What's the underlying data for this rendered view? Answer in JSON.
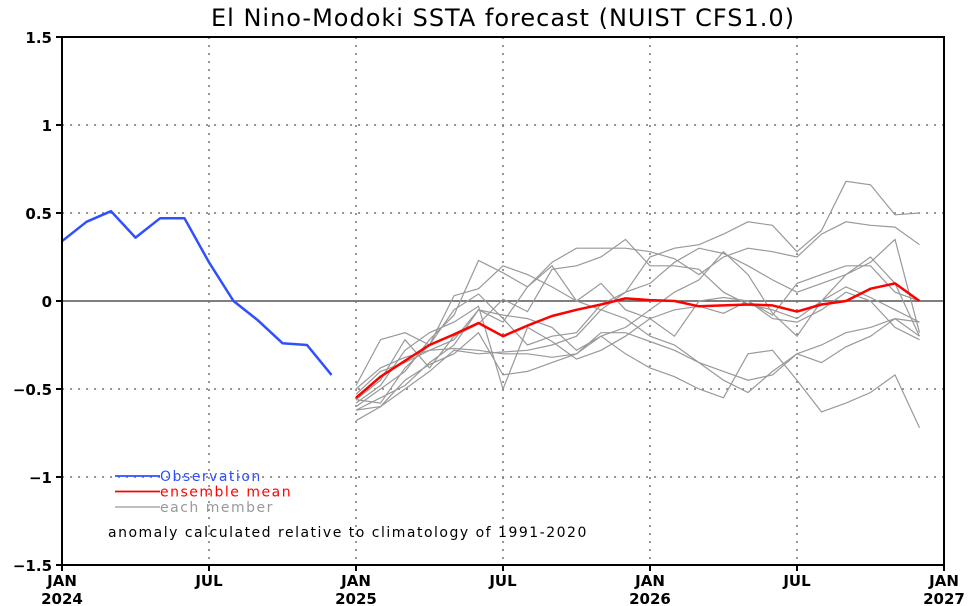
{
  "chart_data": {
    "type": "line",
    "title": "El Nino-Modoki SSTA forecast (NUIST CFS1.0)",
    "xlabel": "",
    "ylabel": "",
    "ylim": [
      -1.5,
      1.5
    ],
    "yticks": [
      1.5,
      1,
      0.5,
      0,
      -0.5,
      -1,
      -1.5
    ],
    "ytick_labels": [
      "1.5",
      "1",
      "0.5",
      "0",
      "-0.5",
      "-1",
      "-1.5"
    ],
    "xrange_months": [
      0,
      36
    ],
    "xticks": [
      {
        "month": 0,
        "label": "JAN",
        "year": "2024"
      },
      {
        "month": 6,
        "label": "JUL",
        "year": ""
      },
      {
        "month": 12,
        "label": "JAN",
        "year": "2025"
      },
      {
        "month": 18,
        "label": "JUL",
        "year": ""
      },
      {
        "month": 24,
        "label": "JAN",
        "year": "2026"
      },
      {
        "month": 30,
        "label": "JUL",
        "year": ""
      },
      {
        "month": 36,
        "label": "JAN",
        "year": "2027"
      }
    ],
    "grid": true,
    "legend_placement": "bottom-left",
    "note": "anomaly calculated relative to climatology of 1991-2020",
    "series": [
      {
        "name": "Observation",
        "color": "#3050ff",
        "start_month": 0,
        "values": [
          0.34,
          0.45,
          0.51,
          0.36,
          0.47,
          0.47,
          0.22,
          0.0,
          -0.11,
          -0.24,
          -0.25,
          -0.42
        ]
      },
      {
        "name": "ensemble mean",
        "color": "#ff0000",
        "start_month": 12,
        "values": [
          -0.55,
          -0.43,
          -0.34,
          -0.25,
          -0.19,
          -0.125,
          -0.2,
          -0.14,
          -0.085,
          -0.05,
          -0.02,
          0.015,
          0.005,
          0.0,
          -0.03,
          -0.025,
          -0.02,
          -0.025,
          -0.06,
          -0.02,
          0.0,
          0.07,
          0.1,
          0.0
        ]
      },
      {
        "name": "each member",
        "color": "#999999",
        "start_month": 12,
        "members": [
          [
            -0.48,
            -0.22,
            -0.18,
            -0.25,
            -0.05,
            0.04,
            -0.1,
            -0.25,
            -0.2,
            -0.18,
            -0.02,
            0.05,
            0.25,
            0.3,
            0.32,
            0.38,
            0.45,
            0.43,
            0.28,
            0.4,
            0.68,
            0.66,
            0.49,
            0.5
          ],
          [
            -0.6,
            -0.5,
            -0.4,
            -0.22,
            -0.08,
            0.23,
            0.16,
            0.08,
            0.22,
            0.3,
            0.3,
            0.3,
            0.28,
            0.24,
            0.15,
            0.25,
            0.3,
            0.28,
            0.25,
            0.38,
            0.45,
            0.43,
            0.42,
            0.32
          ],
          [
            -0.56,
            -0.45,
            -0.22,
            -0.38,
            -0.2,
            -0.13,
            0.01,
            -0.06,
            0.18,
            0.2,
            0.25,
            0.35,
            0.2,
            0.2,
            0.18,
            0.05,
            -0.02,
            -0.05,
            -0.1,
            0.0,
            0.15,
            0.25,
            0.1,
            -0.2
          ],
          [
            -0.62,
            -0.6,
            -0.5,
            -0.4,
            -0.28,
            -0.3,
            -0.29,
            -0.28,
            -0.25,
            -0.2,
            -0.05,
            0.05,
            0.1,
            0.22,
            0.3,
            0.27,
            0.2,
            0.12,
            0.05,
            0.1,
            0.15,
            0.22,
            0.35,
            -0.18
          ],
          [
            -0.68,
            -0.6,
            -0.45,
            -0.36,
            -0.3,
            -0.18,
            -0.42,
            -0.4,
            -0.35,
            -0.3,
            -0.18,
            -0.18,
            -0.23,
            -0.28,
            -0.35,
            -0.45,
            -0.52,
            -0.4,
            -0.3,
            -0.25,
            -0.18,
            -0.15,
            -0.1,
            -0.2
          ],
          [
            -0.53,
            -0.4,
            -0.35,
            -0.28,
            -0.22,
            -0.05,
            -0.12,
            0.08,
            0.2,
            0.0,
            0.1,
            -0.05,
            -0.1,
            -0.2,
            0.0,
            0.02,
            0.0,
            -0.08,
            0.1,
            0.15,
            0.2,
            0.2,
            0.05,
            0.0
          ],
          [
            -0.5,
            -0.38,
            -0.32,
            -0.28,
            -0.27,
            -0.28,
            -0.3,
            -0.3,
            -0.32,
            -0.3,
            -0.2,
            -0.15,
            -0.05,
            0.05,
            0.12,
            0.28,
            0.15,
            -0.07,
            -0.2,
            0.0,
            0.08,
            0.02,
            -0.05,
            -0.12
          ],
          [
            -0.58,
            -0.48,
            -0.28,
            -0.18,
            -0.12,
            -0.03,
            -0.5,
            -0.15,
            -0.23,
            -0.33,
            -0.28,
            -0.2,
            -0.1,
            -0.05,
            -0.03,
            -0.07,
            0.0,
            -0.1,
            -0.12,
            -0.05,
            0.05,
            0.0,
            -0.15,
            -0.22
          ],
          [
            -0.56,
            -0.58,
            -0.38,
            -0.25,
            0.03,
            0.07,
            0.2,
            0.15,
            0.08,
            0.0,
            -0.05,
            -0.1,
            -0.2,
            -0.25,
            -0.35,
            -0.4,
            -0.45,
            -0.42,
            -0.3,
            -0.35,
            -0.26,
            -0.2,
            -0.1,
            -0.12
          ],
          [
            -0.62,
            -0.55,
            -0.48,
            -0.35,
            -0.25,
            -0.05,
            -0.08,
            -0.1,
            -0.15,
            -0.28,
            -0.2,
            -0.3,
            -0.38,
            -0.43,
            -0.5,
            -0.55,
            -0.3,
            -0.28,
            -0.45,
            -0.63,
            -0.58,
            -0.52,
            -0.42,
            -0.72
          ]
        ]
      }
    ]
  }
}
